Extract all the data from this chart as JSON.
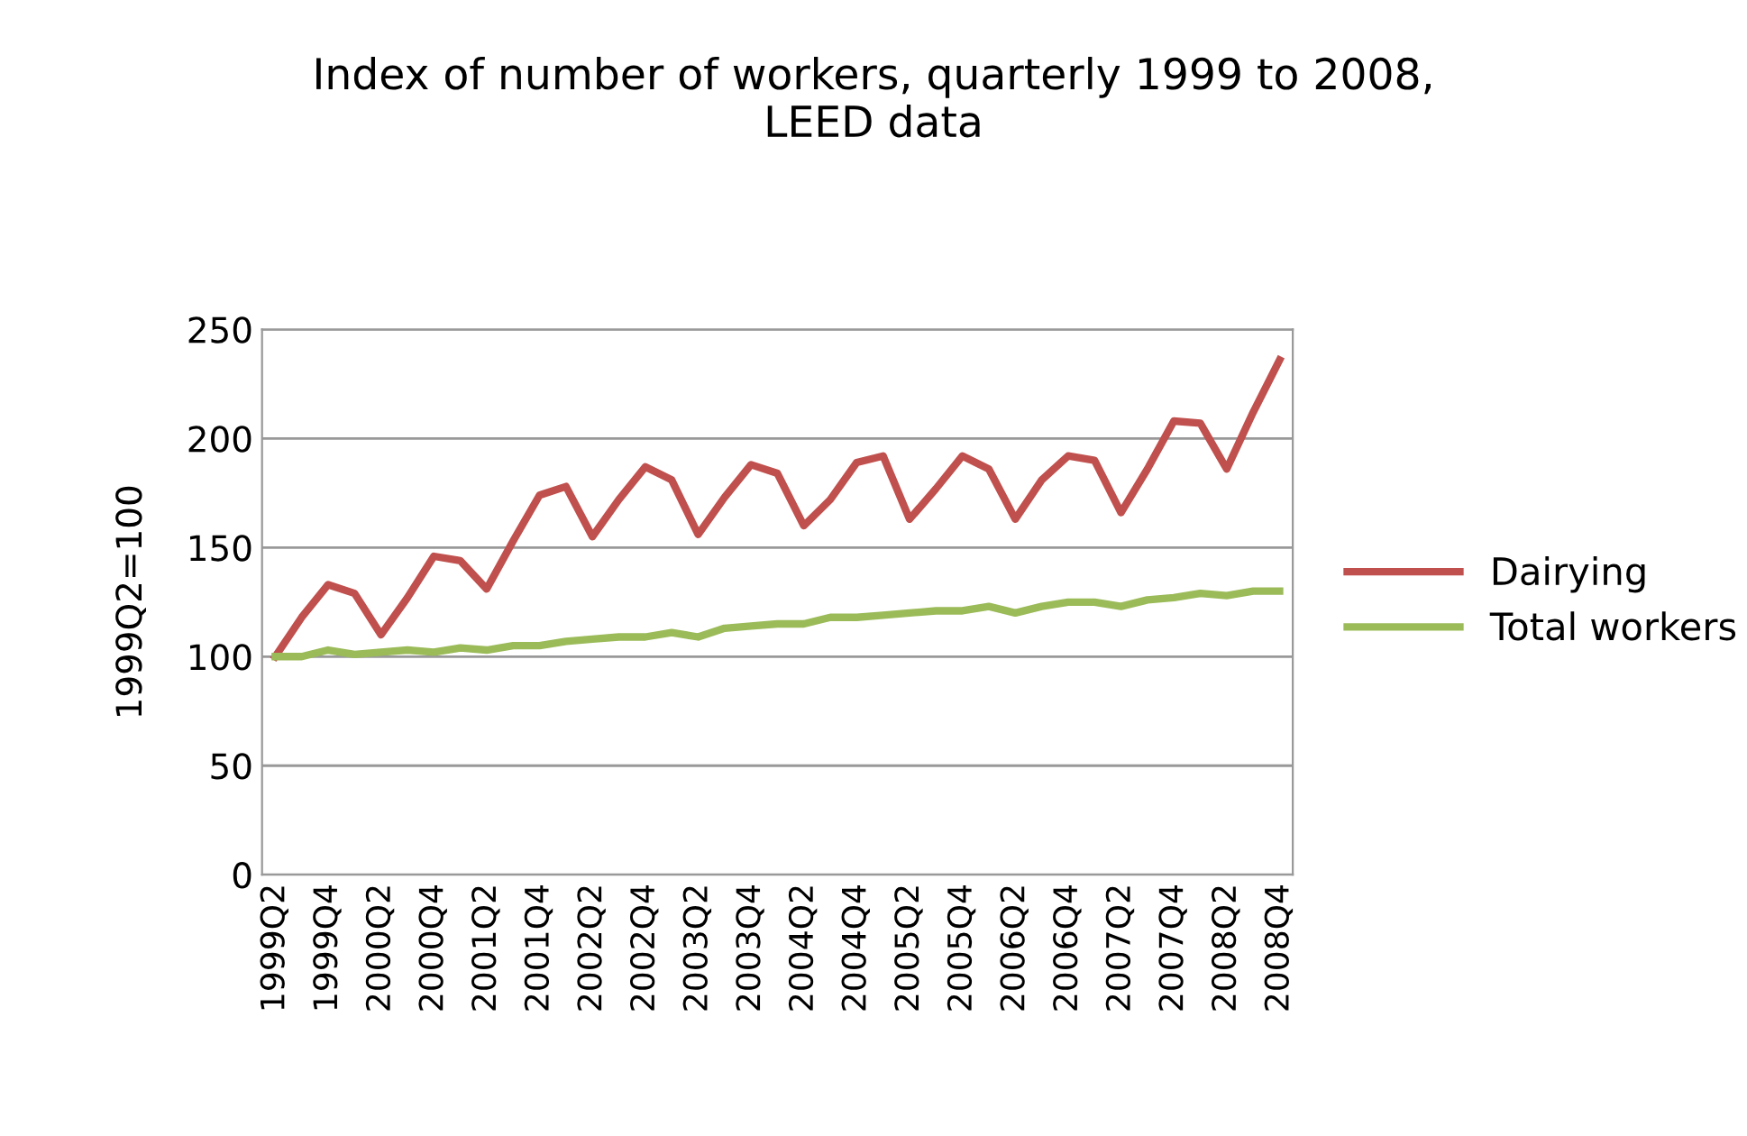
{
  "chart_data": {
    "type": "line",
    "title": "Index of number of workers, quarterly 1999 to 2008,\nLEED data",
    "ylabel": "1999Q2=100",
    "categories": [
      "1999Q2",
      null,
      "1999Q4",
      null,
      "2000Q2",
      null,
      "2000Q4",
      null,
      "2001Q2",
      null,
      "2001Q4",
      null,
      "2002Q2",
      null,
      "2002Q4",
      null,
      "2003Q2",
      null,
      "2003Q4",
      null,
      "2004Q2",
      null,
      "2004Q4",
      null,
      "2005Q2",
      null,
      "2005Q4",
      null,
      "2006Q2",
      null,
      "2006Q4",
      null,
      "2007Q2",
      null,
      "2007Q4",
      null,
      "2008Q2",
      null,
      "2008Q4"
    ],
    "series": [
      {
        "name": "Dairying",
        "color": "#c0504d",
        "values": [
          100,
          118,
          133,
          129,
          110,
          127,
          146,
          144,
          131,
          153,
          174,
          178,
          155,
          172,
          187,
          181,
          156,
          173,
          188,
          184,
          160,
          172,
          189,
          192,
          163,
          177,
          192,
          186,
          163,
          181,
          192,
          190,
          166,
          186,
          208,
          207,
          186,
          212,
          236
        ]
      },
      {
        "name": "Total workers",
        "color": "#9bbb59",
        "values": [
          100,
          100,
          103,
          101,
          102,
          103,
          102,
          104,
          103,
          105,
          105,
          107,
          108,
          109,
          109,
          111,
          109,
          113,
          114,
          115,
          115,
          118,
          118,
          119,
          120,
          121,
          121,
          123,
          120,
          123,
          125,
          125,
          123,
          126,
          127,
          129,
          128,
          130,
          130
        ]
      }
    ],
    "ylim": [
      0,
      250
    ],
    "yticks": [
      0,
      50,
      100,
      150,
      200,
      250
    ],
    "grid": "y",
    "legend": "right",
    "marker": "none",
    "line_style": "solid"
  }
}
